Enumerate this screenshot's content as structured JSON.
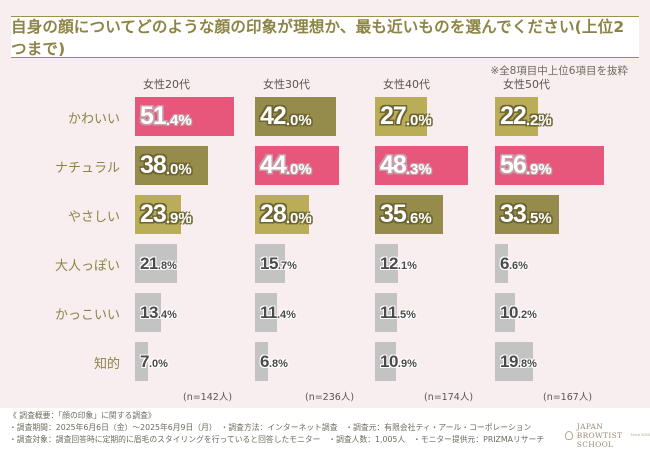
{
  "header": {
    "title": "自身の顔についてどのような顔の印象が理想か、最も近いものを選んでください(上位2つまで)",
    "note": "※全8項目中上位6項目を抜粋"
  },
  "colors": {
    "rank1": "#e6577b",
    "rank2": "#958c4c",
    "rank3": "#b9ad58",
    "other": "#c4c3c3",
    "label": "#8c8444"
  },
  "chart_data": {
    "type": "bar",
    "orientation": "horizontal",
    "title": "自身の顔についてどのような顔の印象が理想か、最も近いものを選んでください(上位2つまで)",
    "note": "※全8項目中上位6項目を抜粋",
    "unit": "%",
    "categories": [
      "かわいい",
      "ナチュラル",
      "やさしい",
      "大人っぽい",
      "かっこいい",
      "知的"
    ],
    "series": [
      {
        "name": "女性20代",
        "n": "(n=142人)",
        "values": [
          51.4,
          38.0,
          23.9,
          21.8,
          13.4,
          7.0
        ],
        "ranks": [
          1,
          2,
          3,
          0,
          0,
          0
        ]
      },
      {
        "name": "女性30代",
        "n": "(n=236人)",
        "values": [
          42.0,
          44.0,
          28.0,
          15.7,
          11.4,
          6.8
        ],
        "ranks": [
          2,
          1,
          3,
          0,
          0,
          0
        ]
      },
      {
        "name": "女性40代",
        "n": "(n=174人)",
        "values": [
          27.0,
          48.3,
          35.6,
          12.1,
          11.5,
          10.9
        ],
        "ranks": [
          3,
          1,
          2,
          0,
          0,
          0
        ]
      },
      {
        "name": "女性50代",
        "n": "(n=167人)",
        "values": [
          22.2,
          56.9,
          33.5,
          6.6,
          10.2,
          19.8
        ],
        "ranks": [
          3,
          1,
          2,
          0,
          0,
          0
        ]
      }
    ],
    "grid": false,
    "legend": "none"
  },
  "footer": {
    "line1": "《 調査概要：「顔の印象」に関する調査》",
    "line2": "・調査期間：2025年6月6日（金）〜2025年6月9日（月）　・調査方法：インターネット調査　・調査元：有限会社ティ・アール・コーポレーション",
    "line3": "・調査対象：調査回答時に定期的に眉毛のスタイリングを行っていると回答したモニター　・調査人数：1,005人　・モニター提供元：PRIZMAリサーチ",
    "logo_text": "JAPAN BROWTIST SCHOOL",
    "logo_sub": "Since 2005"
  }
}
